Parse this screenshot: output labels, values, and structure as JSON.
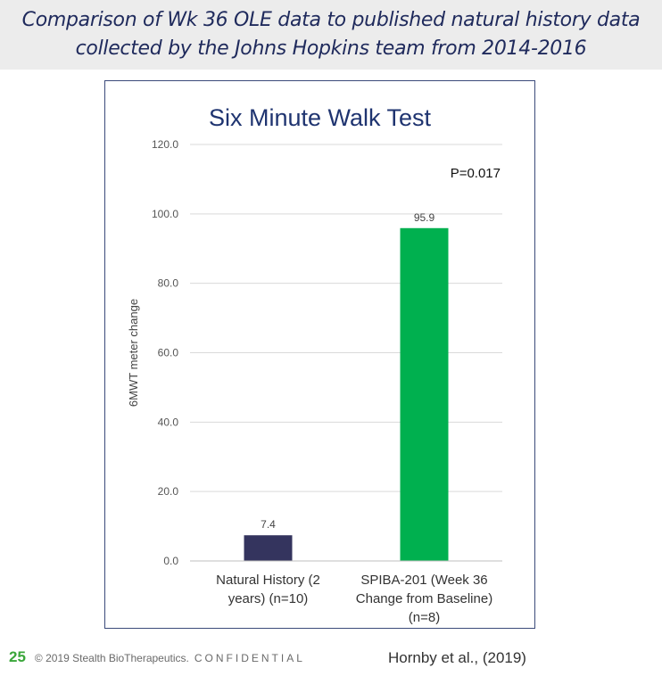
{
  "header": {
    "line1": "Comparison of Wk 36 OLE data to published natural history data",
    "line2": "collected by the Johns Hopkins team from 2014-2016"
  },
  "annotation": "P=0.017",
  "footer": {
    "slide_number": "25",
    "copyright": "© 2019 Stealth BioTherapeutics.",
    "confidential": "CONFIDENTIAL",
    "citation": "Hornby et al., (2019)"
  },
  "colors": {
    "header_text": "#1f2a5c",
    "title_text": "#1f3470",
    "bar_natural_history": "#34345e",
    "bar_spiba": "#00b04f",
    "slide_number": "#3aa63a"
  },
  "chart_data": {
    "type": "bar",
    "title": "Six Minute Walk Test",
    "ylabel": "6MWT meter change",
    "xlabel": "",
    "ylim": [
      0,
      120
    ],
    "yticks": [
      "0.0",
      "20.0",
      "40.0",
      "60.0",
      "80.0",
      "100.0",
      "120.0"
    ],
    "grid": true,
    "categories": [
      [
        "Natural History (2",
        "years) (n=10)"
      ],
      [
        "SPIBA-201 (Week 36",
        "Change from Baseline)",
        "(n=8)"
      ]
    ],
    "values": [
      7.4,
      95.9
    ],
    "data_labels": [
      "7.4",
      "95.9"
    ]
  }
}
